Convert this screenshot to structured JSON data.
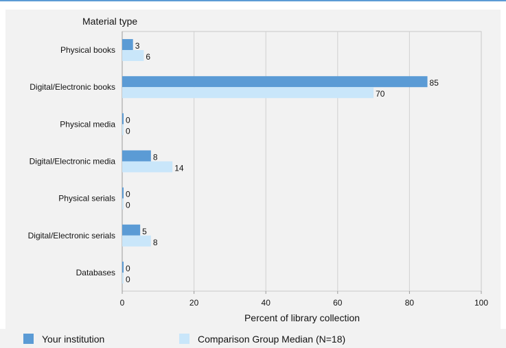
{
  "chart_data": {
    "type": "bar",
    "orientation": "horizontal",
    "y_axis_title": "Material type",
    "categories": [
      "Physical books",
      "Digital/Electronic books",
      "Physical media",
      "Digital/Electronic media",
      "Physical serials",
      "Digital/Electronic serials",
      "Databases"
    ],
    "series": [
      {
        "name": "Your institution",
        "values": [
          3,
          85,
          0,
          8,
          0,
          5,
          0
        ],
        "color": "#5b9bd5"
      },
      {
        "name": "Comparison Group Median (N=18)",
        "values": [
          6,
          70,
          0,
          14,
          0,
          8,
          0
        ],
        "color": "#c9e6fa"
      }
    ],
    "xlabel": "Percent of library collection",
    "xlim": [
      0,
      100
    ],
    "xticks": [
      0,
      20,
      40,
      60,
      80,
      100
    ],
    "grid": true,
    "legend_placement": "bottom"
  },
  "colors": {
    "top_rule": "#5b9bd5",
    "plot_bg": "#f2f2f2",
    "panel_bg": "#f2f2f2",
    "grid": "#d0d0d0",
    "border": "#c8c8c8"
  }
}
